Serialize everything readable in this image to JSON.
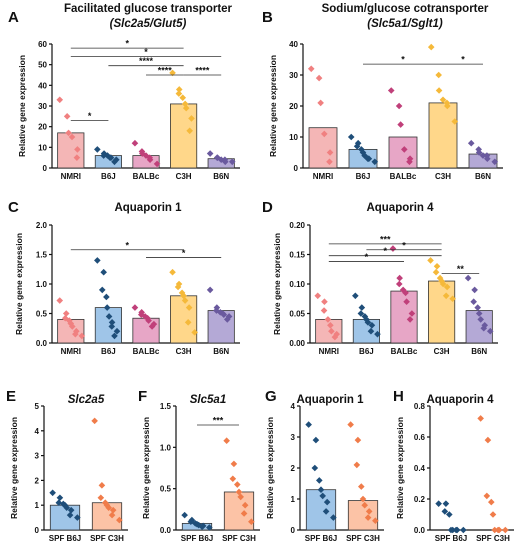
{
  "colors": {
    "NMRI": "#f08080",
    "B6J": "#1f4e79",
    "BALBc": "#c0407a",
    "C3H": "#f5b93a",
    "B6N": "#6a5a9e",
    "SPF B6J": "#1f4e79",
    "SPF C3H": "#f07c4a"
  },
  "chart_data": [
    {
      "id": "A",
      "letter": "A",
      "type": "bar",
      "title_line1": "Facilitated glucose transporter",
      "title_line2": "(Slc2a5/Glut5)",
      "ylabel": "Relative gene expression",
      "ylim": [
        0,
        60
      ],
      "yticks": [
        0,
        10,
        20,
        30,
        40,
        50,
        60
      ],
      "categories": [
        "NMRI",
        "B6J",
        "BALBc",
        "C3H",
        "B6N"
      ],
      "bar_colors": [
        "#f4b6b6",
        "#9fc5e8",
        "#e7a6c6",
        "#ffd78a",
        "#b4a9d6"
      ],
      "point_colors": [
        "#f08080",
        "#1f4e79",
        "#c0407a",
        "#f5b93a",
        "#6a5a9e"
      ],
      "values": [
        17,
        6,
        6,
        31,
        4.5
      ],
      "points": [
        [
          33,
          25,
          17,
          15,
          9,
          5
        ],
        [
          9,
          7,
          6,
          6,
          5,
          5,
          4,
          3
        ],
        [
          12,
          8,
          7,
          6,
          5,
          4,
          2
        ],
        [
          46,
          38,
          36,
          34,
          31,
          29,
          24,
          18
        ],
        [
          7,
          5,
          5,
          4,
          4,
          3,
          3
        ]
      ],
      "sig": [
        {
          "a": 0,
          "b": 3,
          "y": 58,
          "label": "*"
        },
        {
          "a": 0,
          "b": 4,
          "y": 54,
          "label": "*"
        },
        {
          "a": 1,
          "b": 3,
          "y": 49.5,
          "label": "****"
        },
        {
          "a": 2,
          "b": 3,
          "y": 45,
          "label": "****"
        },
        {
          "a": 3,
          "b": 4,
          "y": 45,
          "label": "****"
        },
        {
          "a": 0,
          "b": 1,
          "y": 23,
          "label": "*"
        }
      ]
    },
    {
      "id": "B",
      "letter": "B",
      "type": "bar",
      "title_line1": "Sodium/glucose cotransporter",
      "title_line2": "(Slc5a1/Sglt1)",
      "ylabel": "Relative gene expression",
      "ylim": [
        0,
        40
      ],
      "yticks": [
        0,
        10,
        20,
        30,
        40
      ],
      "categories": [
        "NMRI",
        "B6J",
        "BALBc",
        "C3H",
        "B6N"
      ],
      "bar_colors": [
        "#f4b6b6",
        "#9fc5e8",
        "#e7a6c6",
        "#ffd78a",
        "#b4a9d6"
      ],
      "point_colors": [
        "#f08080",
        "#1f4e79",
        "#c0407a",
        "#f5b93a",
        "#6a5a9e"
      ],
      "values": [
        13,
        6,
        10,
        21,
        4.5
      ],
      "points": [
        [
          32,
          29,
          21,
          11,
          5,
          2
        ],
        [
          10,
          8,
          7,
          6,
          5,
          4,
          3,
          3,
          2
        ],
        [
          25,
          20,
          14,
          6,
          3,
          2
        ],
        [
          39,
          30,
          25,
          22,
          21,
          20,
          15
        ],
        [
          8,
          6,
          5,
          4,
          4,
          3,
          2
        ]
      ],
      "sig": [
        {
          "a": 1,
          "b": 3,
          "y": 33.5,
          "label": "*"
        },
        {
          "a": 3,
          "b": 4,
          "y": 33.5,
          "label": "*"
        }
      ]
    },
    {
      "id": "C",
      "letter": "C",
      "type": "bar",
      "title_line1": "Aquaporin 1",
      "title_line2": "",
      "ylabel": "Relative gene expression",
      "ylim": [
        0,
        2.0
      ],
      "yticks": [
        0.0,
        0.5,
        1.0,
        1.5,
        2.0
      ],
      "categories": [
        "NMRI",
        "B6J",
        "BALBc",
        "C3H",
        "B6N"
      ],
      "bar_colors": [
        "#f4b6b6",
        "#9fc5e8",
        "#e7a6c6",
        "#ffd78a",
        "#b4a9d6"
      ],
      "point_colors": [
        "#f08080",
        "#1f4e79",
        "#c0407a",
        "#f5b93a",
        "#6a5a9e"
      ],
      "values": [
        0.4,
        0.6,
        0.42,
        0.8,
        0.55
      ],
      "points": [
        [
          0.72,
          0.5,
          0.42,
          0.38,
          0.33,
          0.28,
          0.2,
          0.15,
          0.12
        ],
        [
          1.4,
          1.2,
          0.9,
          0.78,
          0.6,
          0.45,
          0.35,
          0.28,
          0.2,
          0.12
        ],
        [
          0.6,
          0.52,
          0.48,
          0.45,
          0.42,
          0.38,
          0.32,
          0.28
        ],
        [
          1.2,
          1.0,
          0.95,
          0.85,
          0.8,
          0.72,
          0.6,
          0.35,
          0.18
        ],
        [
          0.9,
          0.6,
          0.55,
          0.52,
          0.5,
          0.48,
          0.45,
          0.4
        ]
      ],
      "sig": [
        {
          "a": 0,
          "b": 3,
          "y": 1.58,
          "label": "*"
        },
        {
          "a": 2,
          "b": 4,
          "y": 1.45,
          "label": "*"
        }
      ]
    },
    {
      "id": "D",
      "letter": "D",
      "type": "bar",
      "title_line1": "Aquaporin 4",
      "title_line2": "",
      "ylabel": "Relative gene expression",
      "ylim": [
        0,
        0.2
      ],
      "yticks": [
        0.0,
        0.05,
        0.1,
        0.15,
        0.2
      ],
      "ytick_labels": [
        "0.00",
        "0.05",
        "0.10",
        "0.15",
        "0.20"
      ],
      "categories": [
        "NMRI",
        "B6J",
        "BALBc",
        "C3H",
        "B6N"
      ],
      "bar_colors": [
        "#f4b6b6",
        "#9fc5e8",
        "#e7a6c6",
        "#ffd78a",
        "#b4a9d6"
      ],
      "point_colors": [
        "#f08080",
        "#1f4e79",
        "#c0407a",
        "#f5b93a",
        "#6a5a9e"
      ],
      "values": [
        0.04,
        0.04,
        0.088,
        0.105,
        0.055
      ],
      "points": [
        [
          0.08,
          0.07,
          0.055,
          0.04,
          0.03,
          0.02,
          0.015,
          0.01
        ],
        [
          0.08,
          0.06,
          0.05,
          0.045,
          0.04,
          0.035,
          0.03,
          0.02,
          0.015
        ],
        [
          0.16,
          0.11,
          0.1,
          0.09,
          0.085,
          0.07,
          0.05,
          0.04
        ],
        [
          0.14,
          0.13,
          0.12,
          0.11,
          0.105,
          0.1,
          0.095,
          0.08,
          0.075
        ],
        [
          0.11,
          0.09,
          0.07,
          0.06,
          0.05,
          0.04,
          0.03,
          0.025,
          0.02
        ]
      ],
      "sig": [
        {
          "a": 0,
          "b": 3,
          "y": 0.168,
          "label": "***"
        },
        {
          "a": 1,
          "b": 3,
          "y": 0.158,
          "label": "*"
        },
        {
          "a": 0,
          "b": 3,
          "y": 0.148,
          "label": "*"
        },
        {
          "a": 0,
          "b": 2,
          "y": 0.138,
          "label": "*"
        },
        {
          "a": 3,
          "b": 4,
          "y": 0.118,
          "label": "**"
        }
      ]
    },
    {
      "id": "E",
      "letter": "E",
      "type": "bar",
      "title_line1": "Slc2a5",
      "title_line2": "",
      "title_italic": true,
      "ylabel": "Relative gene expression",
      "ylim": [
        0,
        5
      ],
      "yticks": [
        0,
        1,
        2,
        3,
        4,
        5
      ],
      "categories": [
        "SPF B6J",
        "SPF C3H"
      ],
      "bar_colors": [
        "#9fc5e8",
        "#fcc3a6"
      ],
      "point_colors": [
        "#1f4e79",
        "#f07c4a"
      ],
      "values": [
        1.0,
        1.1
      ],
      "points": [
        [
          1.5,
          1.3,
          1.1,
          1.05,
          1.0,
          0.9,
          0.8,
          0.6,
          0.5
        ],
        [
          4.4,
          1.8,
          1.3,
          1.1,
          1.0,
          0.9,
          0.8,
          0.6,
          0.4
        ]
      ],
      "sig": []
    },
    {
      "id": "F",
      "letter": "F",
      "type": "bar",
      "title_line1": "Slc5a1",
      "title_line2": "",
      "title_italic": true,
      "ylabel": "Relative gene expression",
      "ylim": [
        0,
        1.5
      ],
      "yticks": [
        0.0,
        0.5,
        1.0,
        1.5
      ],
      "categories": [
        "SPF B6J",
        "SPF C3H"
      ],
      "bar_colors": [
        "#9fc5e8",
        "#fcc3a6"
      ],
      "point_colors": [
        "#1f4e79",
        "#f07c4a"
      ],
      "values": [
        0.08,
        0.46
      ],
      "points": [
        [
          0.18,
          0.12,
          0.1,
          0.08,
          0.07,
          0.06,
          0.05,
          0.04,
          0.03
        ],
        [
          1.08,
          0.8,
          0.62,
          0.55,
          0.46,
          0.4,
          0.3,
          0.2,
          0.1
        ]
      ],
      "sig": [
        {
          "a": 0,
          "b": 1,
          "y": 1.27,
          "label": "***"
        }
      ]
    },
    {
      "id": "G",
      "letter": "G",
      "type": "bar",
      "title_line1": "Aquaporin 1",
      "title_line2": "",
      "ylabel": "Relative gene expression",
      "ylim": [
        0,
        4
      ],
      "yticks": [
        0,
        1,
        2,
        3,
        4
      ],
      "categories": [
        "SPF B6J",
        "SPF C3H"
      ],
      "bar_colors": [
        "#9fc5e8",
        "#fcc3a6"
      ],
      "point_colors": [
        "#1f4e79",
        "#f07c4a"
      ],
      "values": [
        1.3,
        0.95
      ],
      "points": [
        [
          3.4,
          2.9,
          2.0,
          1.6,
          1.3,
          1.1,
          0.9,
          0.6,
          0.4
        ],
        [
          3.4,
          2.9,
          2.1,
          1.4,
          1.0,
          0.8,
          0.6,
          0.4,
          0.3
        ]
      ],
      "sig": []
    },
    {
      "id": "H",
      "letter": "H",
      "type": "bar",
      "title_line1": "Aquaporin 4",
      "title_line2": "",
      "ylabel": "Relative gene expression",
      "ylim": [
        0,
        0.8
      ],
      "yticks": [
        0.0,
        0.2,
        0.4,
        0.6,
        0.8
      ],
      "categories": [
        "SPF B6J",
        "SPF C3H"
      ],
      "bar_colors": [
        "#9fc5e8",
        "#fcc3a6"
      ],
      "point_colors": [
        "#1f4e79",
        "#f07c4a"
      ],
      "values": [
        0.0,
        0.0
      ],
      "points": [
        [
          0.17,
          0.17,
          0.12,
          0.1,
          0.0,
          0.0,
          0.0,
          0.0,
          0.0
        ],
        [
          0.72,
          0.58,
          0.22,
          0.18,
          0.1,
          0.0,
          0.0,
          0.0,
          0.0
        ]
      ],
      "sig": []
    }
  ]
}
